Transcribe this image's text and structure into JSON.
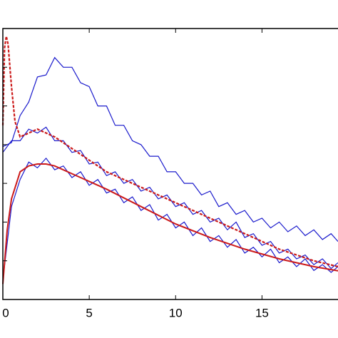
{
  "chart_data": {
    "type": "line",
    "x": [
      0,
      0.5,
      1,
      1.5,
      2,
      2.5,
      3,
      3.5,
      4,
      4.5,
      5,
      5.5,
      6,
      6.5,
      7,
      7.5,
      8,
      8.5,
      9,
      9.5,
      10,
      10.5,
      11,
      11.5,
      12,
      12.5,
      13,
      13.5,
      14,
      14.5,
      15,
      15.5,
      16,
      16.5,
      17,
      17.5,
      18,
      18.5,
      19,
      19.4
    ],
    "series": [
      {
        "color": "#1a1acc",
        "style": "solid",
        "values": [
          3.95,
          4.05,
          4.75,
          5.1,
          5.75,
          5.8,
          6.25,
          6.0,
          6.0,
          5.6,
          5.5,
          5.0,
          5.0,
          4.5,
          4.5,
          4.1,
          4.0,
          3.7,
          3.7,
          3.3,
          3.3,
          3.0,
          3.0,
          2.7,
          2.8,
          2.4,
          2.5,
          2.2,
          2.3,
          2.0,
          2.1,
          1.85,
          2.0,
          1.75,
          1.9,
          1.65,
          1.8,
          1.55,
          1.7,
          1.5
        ]
      },
      {
        "color": "#1a1acc",
        "style": "solid",
        "values": [
          3.8,
          4.1,
          4.1,
          4.4,
          4.3,
          4.45,
          4.1,
          4.1,
          3.8,
          3.85,
          3.5,
          3.55,
          3.2,
          3.3,
          3.0,
          3.1,
          2.8,
          2.9,
          2.6,
          2.7,
          2.4,
          2.5,
          2.2,
          2.3,
          2.0,
          2.1,
          1.8,
          2.0,
          1.6,
          1.7,
          1.4,
          1.5,
          1.2,
          1.3,
          1.05,
          1.15,
          0.9,
          1.05,
          0.8,
          0.95
        ]
      },
      {
        "color": "#1a1acc",
        "style": "solid",
        "values": [
          0.5,
          2.4,
          3.1,
          3.55,
          3.4,
          3.65,
          3.35,
          3.45,
          3.15,
          3.3,
          2.95,
          3.1,
          2.75,
          2.85,
          2.5,
          2.65,
          2.3,
          2.45,
          2.05,
          2.2,
          1.85,
          2.0,
          1.65,
          1.85,
          1.5,
          1.65,
          1.35,
          1.55,
          1.2,
          1.35,
          1.1,
          1.3,
          0.95,
          1.1,
          0.85,
          1.05,
          0.75,
          0.9,
          0.7,
          0.85
        ]
      },
      {
        "color": "#cc1a1a",
        "style": "dashed",
        "x": [
          0,
          0.1,
          0.2,
          0.3,
          0.5,
          0.7,
          1,
          1.5,
          2,
          3,
          4,
          5,
          6,
          8,
          10,
          12,
          14,
          16,
          18,
          19.4
        ],
        "values": [
          4.5,
          6.5,
          6.8,
          6.6,
          5.5,
          4.6,
          4.2,
          4.3,
          4.4,
          4.2,
          3.9,
          3.6,
          3.3,
          2.9,
          2.5,
          2.1,
          1.7,
          1.3,
          1.0,
          0.85
        ]
      },
      {
        "color": "#cc1a1a",
        "style": "solid",
        "x": [
          0,
          0.25,
          0.5,
          1,
          1.5,
          2,
          2.5,
          3,
          4,
          5,
          6,
          8,
          10,
          12,
          14,
          16,
          18,
          19.4
        ],
        "values": [
          0.4,
          1.8,
          2.6,
          3.3,
          3.45,
          3.5,
          3.5,
          3.45,
          3.25,
          3.05,
          2.85,
          2.4,
          1.95,
          1.6,
          1.3,
          1.05,
          0.85,
          0.74
        ]
      }
    ],
    "xlim": [
      0,
      19.4
    ],
    "xticks": [
      0,
      5,
      10,
      15
    ],
    "ylim": [
      0,
      7
    ],
    "yticks": [
      1,
      2,
      3,
      4,
      5,
      6
    ]
  }
}
